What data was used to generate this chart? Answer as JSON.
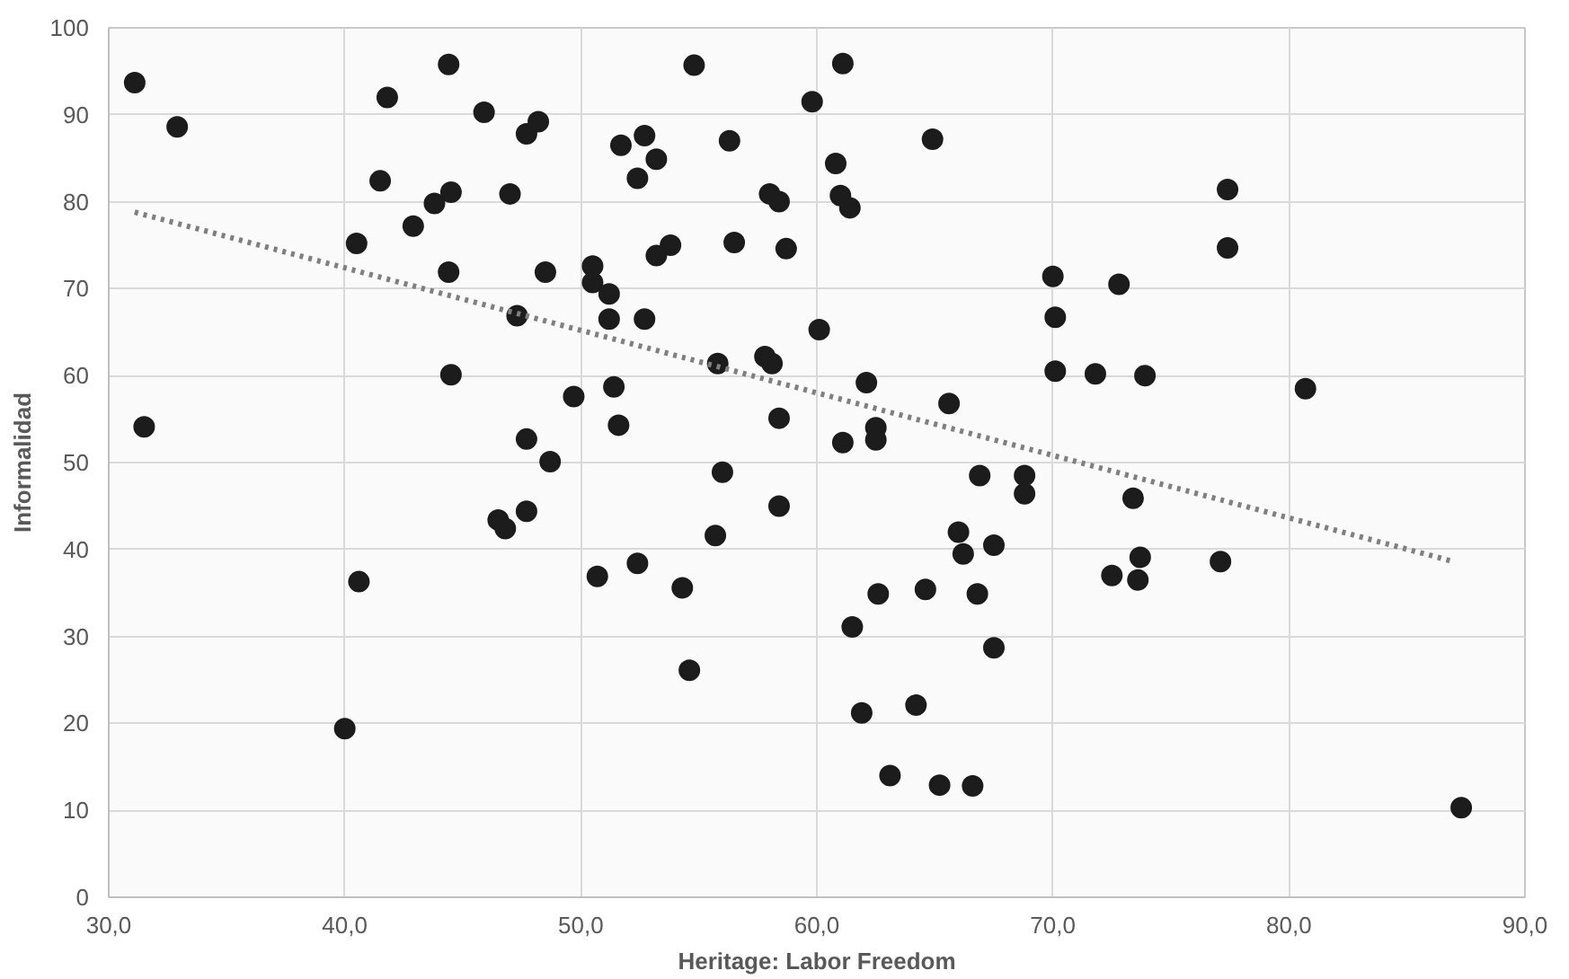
{
  "chart_data": {
    "type": "scatter",
    "xlabel": "Heritage: Labor Freedom",
    "ylabel": "Informalidad",
    "xlim": [
      30,
      90
    ],
    "ylim": [
      0,
      100
    ],
    "xticks": [
      {
        "value": 30,
        "label": "30,0"
      },
      {
        "value": 40,
        "label": "40,0"
      },
      {
        "value": 50,
        "label": "50,0"
      },
      {
        "value": 60,
        "label": "60,0"
      },
      {
        "value": 70,
        "label": "70,0"
      },
      {
        "value": 80,
        "label": "80,0"
      },
      {
        "value": 90,
        "label": "90,0"
      }
    ],
    "yticks": [
      0,
      10,
      20,
      30,
      40,
      50,
      60,
      70,
      80,
      90,
      100
    ],
    "grid": true,
    "marker": "circle",
    "series": [
      {
        "color": "#1c1c1c",
        "x": [
          31.1,
          32.9,
          44.4,
          41.8,
          45.9,
          48.2,
          47.7,
          41.5,
          44.5,
          43.8,
          47.0,
          42.9,
          40.5,
          44.4,
          48.5,
          50.5,
          47.3,
          44.5,
          49.7,
          31.5,
          47.7,
          48.7,
          54.8,
          61.1,
          59.8,
          51.7,
          52.7,
          53.2,
          52.4,
          56.3,
          64.9,
          60.8,
          58.0,
          58.4,
          61.0,
          61.4,
          53.8,
          53.2,
          56.5,
          58.7,
          50.5,
          51.2,
          51.2,
          52.7,
          60.1,
          70.0,
          70.1,
          70.1,
          71.8,
          55.8,
          57.8,
          58.1,
          62.1,
          65.6,
          51.4,
          51.6,
          58.4,
          61.1,
          62.5,
          62.5,
          56.0,
          66.9,
          68.8,
          58.4,
          55.7,
          52.4,
          50.7,
          54.3,
          54.6,
          68.8,
          66.0,
          66.2,
          67.5,
          62.6,
          64.6,
          66.8,
          61.5,
          67.5,
          61.9,
          64.2,
          63.1,
          65.2,
          66.6,
          47.7,
          46.5,
          46.8,
          40.6,
          40.0,
          77.4,
          77.4,
          72.8,
          73.9,
          80.7,
          73.4,
          72.5,
          73.7,
          73.6,
          77.1,
          87.3
        ],
        "values": [
          93.7,
          88.6,
          95.8,
          92.0,
          90.3,
          89.2,
          87.8,
          82.4,
          81.1,
          79.8,
          80.9,
          77.2,
          75.2,
          71.9,
          71.9,
          72.6,
          66.9,
          60.1,
          57.6,
          54.1,
          52.7,
          50.1,
          95.7,
          95.9,
          91.5,
          86.5,
          87.6,
          84.9,
          82.7,
          87.0,
          87.2,
          84.4,
          80.9,
          80.0,
          80.7,
          79.3,
          75.0,
          73.8,
          75.3,
          74.6,
          70.7,
          69.4,
          66.5,
          66.5,
          65.3,
          71.4,
          66.7,
          60.5,
          60.2,
          61.4,
          62.2,
          61.4,
          59.2,
          56.8,
          58.7,
          54.3,
          55.1,
          52.3,
          54.0,
          52.6,
          48.9,
          48.5,
          48.5,
          45.0,
          41.6,
          38.4,
          36.9,
          35.6,
          26.1,
          46.4,
          42.0,
          39.5,
          40.5,
          34.9,
          35.4,
          34.9,
          31.1,
          28.7,
          21.2,
          22.1,
          14.0,
          12.9,
          12.8,
          44.4,
          43.4,
          42.4,
          36.3,
          19.4,
          81.4,
          74.7,
          70.5,
          60.0,
          58.5,
          45.9,
          37.0,
          39.1,
          36.5,
          38.6,
          10.3
        ]
      },
      {
        "type": "line",
        "color": "#7f7f7f",
        "line_style": "dotted",
        "marker": "none",
        "x": [
          31.1,
          87.0
        ],
        "values": [
          78.8,
          38.6
        ]
      }
    ]
  }
}
